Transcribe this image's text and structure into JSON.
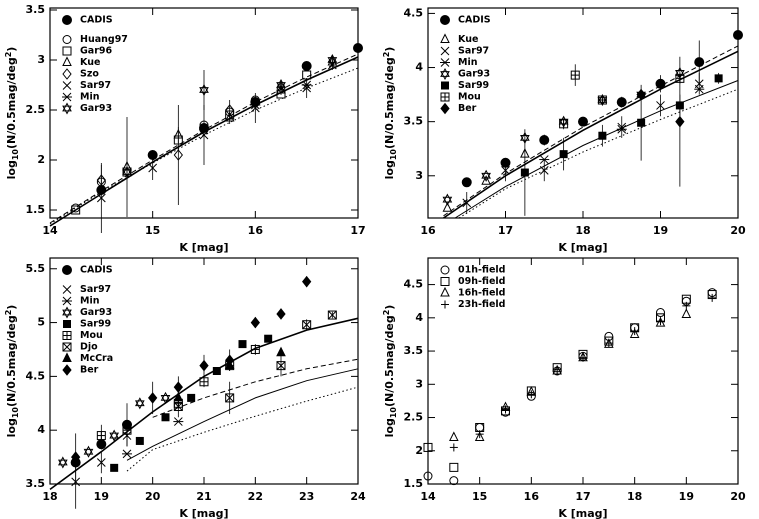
{
  "chart_data": [
    {
      "type": "scatter",
      "xlabel": "K [mag]",
      "ylabel": [
        "log",
        "10",
        "(N/0.5mag/deg",
        "2",
        ")"
      ],
      "xlim": [
        14,
        17
      ],
      "xticks": [
        14,
        15,
        16,
        17
      ],
      "ylim": [
        1.42,
        3.52
      ],
      "yticks": [
        1.5,
        2,
        2.5,
        3,
        3.5
      ],
      "series": [
        {
          "name": "CADIS",
          "marker": "filled-circle",
          "x": [
            14.5,
            15,
            15.5,
            16,
            16.5,
            17
          ],
          "values": [
            1.7,
            2.05,
            2.32,
            2.58,
            2.94,
            3.12
          ]
        },
        {
          "name": "Huang97",
          "marker": "circle",
          "x": [
            14.25,
            14.5,
            15,
            15.5,
            15.75,
            16
          ],
          "values": [
            1.52,
            1.78,
            2.05,
            2.35,
            2.48,
            2.6
          ]
        },
        {
          "name": "Gar96",
          "marker": "square",
          "x": [
            14.25,
            14.75,
            15.25,
            15.75,
            16.25,
            16.5
          ],
          "values": [
            1.5,
            1.88,
            2.2,
            2.45,
            2.66,
            2.85
          ]
        },
        {
          "name": "Kue",
          "marker": "triangle",
          "x": [
            14.75,
            15.25,
            15.75,
            16.25,
            16.75
          ],
          "values": [
            1.93,
            2.25,
            2.42,
            2.7,
            2.98
          ],
          "errors": [
            0.5,
            0.08,
            0.06,
            0.05,
            0.05
          ]
        },
        {
          "name": "Szo",
          "marker": "diamond",
          "x": [
            14.5,
            15.25,
            15.75,
            16.25
          ],
          "values": [
            1.8,
            2.05,
            2.5,
            2.72
          ],
          "errors": [
            0.15,
            0.5,
            0.1,
            0.05
          ]
        },
        {
          "name": "Sar97",
          "marker": "cross",
          "x": [
            14.5,
            15,
            15.5,
            16,
            16.5,
            16.75
          ],
          "values": [
            1.62,
            1.92,
            2.25,
            2.52,
            2.72,
            2.95
          ],
          "errors": [
            0.35,
            0.12,
            0.3,
            0.15,
            0.1,
            0.05
          ]
        },
        {
          "name": "Min",
          "marker": "asterisk",
          "x": [
            15.5,
            16,
            16.5
          ],
          "values": [
            2.3,
            2.55,
            2.75
          ]
        },
        {
          "name": "Gar93",
          "marker": "star",
          "x": [
            14.75,
            15.5,
            16.25,
            16.75
          ],
          "values": [
            1.88,
            2.7,
            2.75,
            3.0
          ],
          "errors": [
            0.05,
            0.2,
            0.05,
            0.05
          ]
        }
      ],
      "curves": [
        {
          "style": "solid",
          "x": [
            14,
            14.5,
            15,
            15.5,
            16,
            16.5,
            17
          ],
          "values": [
            1.34,
            1.66,
            1.98,
            2.28,
            2.55,
            2.8,
            3.03
          ]
        },
        {
          "style": "dashed",
          "x": [
            14,
            14.5,
            15,
            15.5,
            16,
            16.5,
            17
          ],
          "values": [
            1.37,
            1.69,
            2.0,
            2.3,
            2.58,
            2.83,
            3.06
          ]
        },
        {
          "style": "dotted",
          "x": [
            14,
            14.5,
            15,
            15.5,
            16,
            16.5,
            17
          ],
          "values": [
            1.36,
            1.68,
            1.97,
            2.25,
            2.5,
            2.72,
            2.92
          ]
        }
      ]
    },
    {
      "type": "scatter",
      "xlabel": "K [mag]",
      "ylabel": [
        "log",
        "10",
        "(N/0.5mag/deg",
        "2",
        ")"
      ],
      "xlim": [
        16,
        20
      ],
      "xticks": [
        16,
        17,
        18,
        19,
        20
      ],
      "ylim": [
        2.61,
        4.55
      ],
      "yticks": [
        3,
        3.5,
        4,
        4.5
      ],
      "series": [
        {
          "name": "CADIS",
          "marker": "filled-circle",
          "x": [
            16.5,
            17,
            17.5,
            18,
            18.5,
            19,
            19.5,
            20
          ],
          "values": [
            2.94,
            3.12,
            3.33,
            3.5,
            3.68,
            3.85,
            4.05,
            4.3
          ],
          "errors": [
            0.03,
            0.03,
            0.05,
            0.03,
            0.05,
            0.08,
            0.2,
            0.05
          ]
        },
        {
          "name": "Kue",
          "marker": "triangle",
          "x": [
            16.25,
            16.75,
            17.25
          ],
          "values": [
            2.7,
            2.95,
            3.2
          ]
        },
        {
          "name": "Sar97",
          "marker": "cross",
          "x": [
            16.5,
            17,
            17.5,
            18.5,
            19,
            19.5
          ],
          "values": [
            2.75,
            3.05,
            3.05,
            3.45,
            3.65,
            3.85
          ],
          "errors": [
            0.1,
            0.1,
            0.1,
            0.1,
            0.1,
            0.1
          ]
        },
        {
          "name": "Min",
          "marker": "asterisk",
          "x": [
            17.5,
            18.5,
            19.5
          ],
          "values": [
            3.15,
            3.43,
            3.8
          ]
        },
        {
          "name": "Gar93",
          "marker": "star",
          "x": [
            16.25,
            16.75,
            17.25,
            17.75,
            18.25,
            18.75,
            19.25
          ],
          "values": [
            2.78,
            3.0,
            3.35,
            3.5,
            3.7,
            3.75,
            3.95
          ]
        },
        {
          "name": "Sar99",
          "marker": "filled-square",
          "x": [
            17.25,
            17.75,
            18.25,
            18.75,
            19.25,
            19.75
          ],
          "values": [
            3.03,
            3.2,
            3.37,
            3.49,
            3.65,
            3.9
          ],
          "errors": [
            0.4,
            0.15,
            0.1,
            0.35,
            0.1,
            0.05
          ]
        },
        {
          "name": "Mou",
          "marker": "boxed-plus",
          "x": [
            17.75,
            17.9,
            18.25,
            19.25
          ],
          "values": [
            3.48,
            3.93,
            3.7,
            3.9
          ],
          "errors": [
            0.05,
            0.1,
            0.05,
            0.05
          ]
        },
        {
          "name": "Ber",
          "marker": "filled-diamond",
          "x": [
            18.75,
            19.25
          ],
          "values": [
            3.75,
            3.5
          ],
          "errors": [
            0.05,
            0.6
          ]
        }
      ],
      "curves": [
        {
          "style": "solid",
          "x": [
            16.2,
            17,
            18,
            19,
            20
          ],
          "values": [
            2.61,
            3.0,
            3.42,
            3.8,
            4.15
          ]
        },
        {
          "style": "dashed",
          "x": [
            16.2,
            17,
            18,
            19,
            20
          ],
          "values": [
            2.63,
            3.02,
            3.45,
            3.83,
            4.2
          ]
        },
        {
          "style": "solid",
          "x": [
            16.35,
            17,
            18,
            19,
            20
          ],
          "values": [
            2.61,
            2.9,
            3.28,
            3.6,
            3.88
          ]
        },
        {
          "style": "dotted",
          "x": [
            16.4,
            17,
            18,
            19,
            20
          ],
          "values": [
            2.61,
            2.88,
            3.22,
            3.52,
            3.8
          ]
        }
      ]
    },
    {
      "type": "scatter",
      "xlabel": "K [mag]",
      "ylabel": [
        "log",
        "10",
        "(N/0.5mag/deg",
        "2",
        ")"
      ],
      "xlim": [
        18,
        24
      ],
      "xticks": [
        18,
        19,
        20,
        21,
        22,
        23,
        24
      ],
      "ylim": [
        3.5,
        5.6
      ],
      "yticks": [
        3.5,
        4,
        4.5,
        5,
        5.5
      ],
      "series": [
        {
          "name": "CADIS",
          "marker": "filled-circle",
          "x": [
            18.5,
            19,
            19.5
          ],
          "values": [
            3.7,
            3.87,
            4.05
          ],
          "errors": [
            0.05,
            0.05,
            0.2
          ]
        },
        {
          "name": "Sar97",
          "marker": "cross",
          "x": [
            18.5,
            19,
            19.5
          ],
          "values": [
            3.52,
            3.7,
            3.95
          ],
          "errors": [
            0.25,
            0.1,
            0.1
          ]
        },
        {
          "name": "Min",
          "marker": "asterisk",
          "x": [
            19.5,
            20.5
          ],
          "values": [
            3.78,
            4.08
          ]
        },
        {
          "name": "Gar93",
          "marker": "star",
          "x": [
            18.25,
            18.75,
            19.25,
            19.75,
            20.25
          ],
          "values": [
            3.7,
            3.8,
            3.95,
            4.25,
            4.3
          ]
        },
        {
          "name": "Sar99",
          "marker": "filled-square",
          "x": [
            19.25,
            19.75,
            20.25,
            20.75,
            21.25,
            21.75,
            22.25
          ],
          "values": [
            3.65,
            3.9,
            4.12,
            4.3,
            4.55,
            4.8,
            4.85
          ]
        },
        {
          "name": "Mou",
          "marker": "boxed-plus",
          "x": [
            19,
            19.5,
            20.5,
            21,
            21.5,
            22
          ],
          "values": [
            3.95,
            4.0,
            4.25,
            4.45,
            4.6,
            4.75
          ],
          "errors": [
            0.1,
            0.05,
            0.05,
            0.05,
            0.05,
            0.05
          ]
        },
        {
          "name": "Djo",
          "marker": "boxed-cross",
          "x": [
            20.5,
            21.5,
            22.5,
            23,
            23.5
          ],
          "values": [
            4.22,
            4.3,
            4.6,
            4.98,
            5.07
          ],
          "errors": [
            0.1,
            0.15,
            0.1,
            0.05,
            0.03
          ]
        },
        {
          "name": "McCra",
          "marker": "filled-triangle",
          "x": [
            20.5,
            21.5,
            22.5
          ],
          "values": [
            4.3,
            4.6,
            4.72
          ]
        },
        {
          "name": "Ber",
          "marker": "filled-diamond",
          "x": [
            18.5,
            20,
            20.5,
            21,
            21.5,
            22,
            22.5,
            23
          ],
          "values": [
            3.75,
            4.3,
            4.4,
            4.6,
            4.65,
            5.0,
            5.08,
            5.38
          ],
          "errors": [
            0.22,
            0.15,
            0.1,
            0.1,
            0.1,
            0.05,
            0.05,
            0.05
          ]
        }
      ],
      "curves": [
        {
          "style": "solid",
          "x": [
            18,
            19,
            20,
            21,
            22,
            23,
            24
          ],
          "values": [
            3.45,
            3.8,
            4.17,
            4.5,
            4.76,
            4.93,
            5.04
          ]
        },
        {
          "style": "solid",
          "x": [
            19.5,
            20,
            21,
            22,
            23,
            24
          ],
          "values": [
            3.72,
            3.85,
            4.08,
            4.3,
            4.46,
            4.57
          ]
        },
        {
          "style": "dashed",
          "x": [
            20,
            21,
            22,
            23,
            24
          ],
          "values": [
            4.12,
            4.3,
            4.45,
            4.57,
            4.66
          ]
        },
        {
          "style": "dotted",
          "x": [
            19.5,
            20,
            21,
            22,
            23,
            24
          ],
          "values": [
            3.62,
            3.82,
            3.98,
            4.13,
            4.27,
            4.4
          ]
        }
      ]
    },
    {
      "type": "scatter",
      "xlabel": "K [mag]",
      "ylabel": [
        "log",
        "10",
        "(N/0.5mag/deg",
        "2",
        ")"
      ],
      "xlim": [
        14,
        20
      ],
      "xticks": [
        14,
        15,
        16,
        17,
        18,
        19,
        20
      ],
      "ylim": [
        1.5,
        4.9
      ],
      "yticks": [
        1.5,
        2,
        2.5,
        3,
        3.5,
        4,
        4.5
      ],
      "series": [
        {
          "name": "01h-field",
          "marker": "circle",
          "x": [
            14,
            14.5,
            15,
            15.5,
            16,
            16.5,
            17,
            17.5,
            18,
            18.5,
            19,
            19.5
          ],
          "values": [
            1.62,
            1.55,
            2.35,
            2.58,
            2.82,
            3.2,
            3.42,
            3.72,
            3.85,
            4.08,
            4.25,
            4.38
          ]
        },
        {
          "name": "09h-field",
          "marker": "square",
          "x": [
            14,
            14.5,
            15,
            15.5,
            16,
            16.5,
            17,
            17.5,
            18,
            18.5,
            19,
            19.5
          ],
          "values": [
            2.05,
            1.75,
            2.35,
            2.6,
            2.9,
            3.25,
            3.45,
            3.65,
            3.85,
            4.0,
            4.28,
            4.35
          ]
        },
        {
          "name": "16h-field",
          "marker": "triangle",
          "x": [
            14.5,
            15,
            15.5,
            16,
            16.5,
            17,
            17.5,
            18,
            18.5,
            19
          ],
          "values": [
            2.2,
            2.2,
            2.65,
            2.88,
            3.2,
            3.4,
            3.6,
            3.75,
            3.92,
            4.05
          ]
        },
        {
          "name": "23h-field",
          "marker": "plus",
          "x": [
            14.5,
            15,
            15.5,
            16,
            16.5,
            17,
            17.5,
            18,
            18.5,
            19,
            19.5
          ],
          "values": [
            2.05,
            2.25,
            2.62,
            2.85,
            3.22,
            3.4,
            3.62,
            3.8,
            3.95,
            4.18,
            4.3
          ]
        }
      ],
      "curves": []
    }
  ]
}
